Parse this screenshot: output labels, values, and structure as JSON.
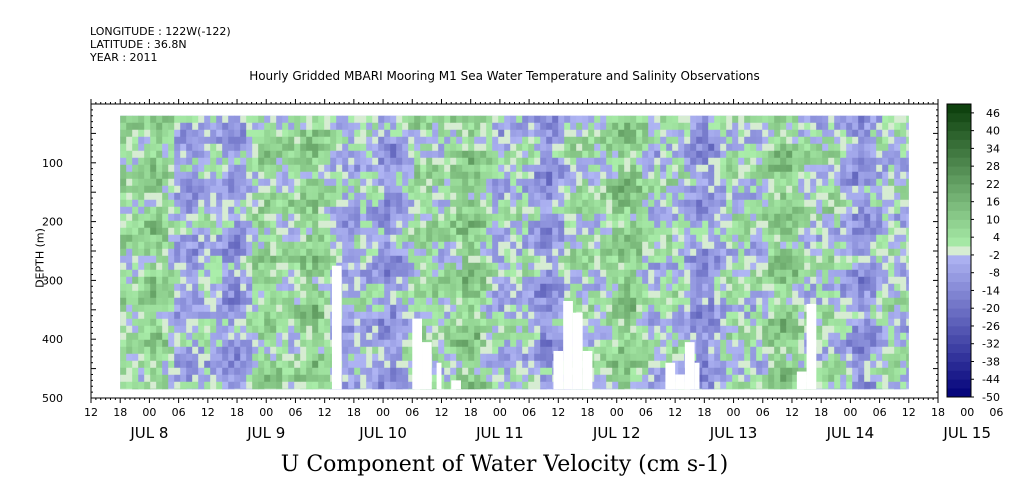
{
  "header": {
    "longitude": "LONGITUDE : 122W(-122)",
    "latitude": "LATITUDE : 36.8N",
    "year": "YEAR : 2011"
  },
  "chart_data": {
    "type": "heatmap",
    "title": "Hourly Gridded MBARI Mooring M1 Sea Water Temperature and Salinity Observations",
    "xlabel": "U Component of Water Velocity (cm s-1)",
    "ylabel": "DEPTH (m)",
    "x_unit": "hours after JUL 7 12:00",
    "xlim": [
      0,
      174
    ],
    "ylim": [
      500,
      0
    ],
    "data_depth_range": [
      20,
      485
    ],
    "data_time_range": [
      6,
      168
    ],
    "yticks": [
      100,
      200,
      300,
      400,
      500
    ],
    "xticks_hour": [
      "12",
      "18",
      "00",
      "06",
      "12",
      "18",
      "00",
      "06",
      "12",
      "18",
      "00",
      "06",
      "12",
      "18",
      "00",
      "06",
      "12",
      "18",
      "00",
      "06",
      "12",
      "18",
      "00",
      "06",
      "12",
      "18",
      "00",
      "06",
      "12",
      "18",
      "00",
      "06"
    ],
    "xticks_day": [
      "JUL  8",
      "JUL  9",
      "JUL 10",
      "JUL 11",
      "JUL 12",
      "JUL 13",
      "JUL 14",
      "JUL 15"
    ],
    "colorbar": {
      "labels": [
        "46",
        "40",
        "34",
        "28",
        "22",
        "16",
        "10",
        "4",
        "-2",
        "-8",
        "-14",
        "-20",
        "-26",
        "-32",
        "-38",
        "-44",
        "-50"
      ],
      "min": -50,
      "max": 49,
      "step": 3
    },
    "grid": false
  }
}
